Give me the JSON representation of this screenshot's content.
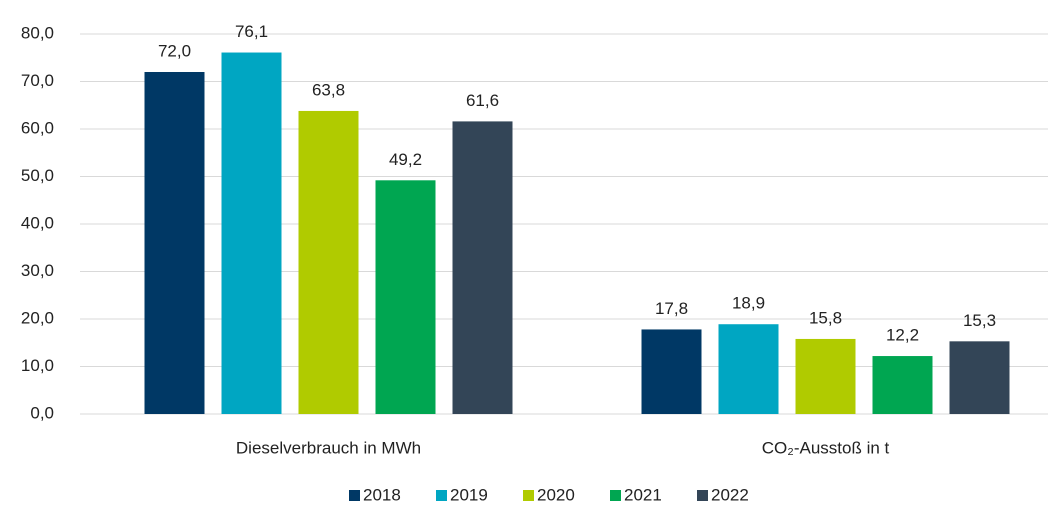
{
  "chart_data": {
    "type": "bar",
    "categories": [
      "Dieselverbrauch in MWh",
      "CO₂-Ausstoß in t"
    ],
    "series": [
      {
        "name": "2018",
        "color": "#003865",
        "values": [
          72.0,
          17.8
        ],
        "value_labels": [
          "72,0",
          "17,8"
        ]
      },
      {
        "name": "2019",
        "color": "#00a6c2",
        "values": [
          76.1,
          18.9
        ],
        "value_labels": [
          "76,1",
          "18,9"
        ]
      },
      {
        "name": "2020",
        "color": "#b0cb00",
        "values": [
          63.8,
          15.8
        ],
        "value_labels": [
          "63,8",
          "15,8"
        ]
      },
      {
        "name": "2021",
        "color": "#00a651",
        "values": [
          49.2,
          12.2
        ],
        "value_labels": [
          "49,2",
          "12,2"
        ]
      },
      {
        "name": "2022",
        "color": "#334557",
        "values": [
          61.6,
          15.3
        ],
        "value_labels": [
          "61,6",
          "15,3"
        ]
      }
    ],
    "ylim": [
      0,
      80
    ],
    "yticks": [
      {
        "value": 0,
        "label": "0,0"
      },
      {
        "value": 10,
        "label": "10,0"
      },
      {
        "value": 20,
        "label": "20,0"
      },
      {
        "value": 30,
        "label": "30,0"
      },
      {
        "value": 40,
        "label": "40,0"
      },
      {
        "value": 50,
        "label": "50,0"
      },
      {
        "value": 60,
        "label": "60,0"
      },
      {
        "value": 70,
        "label": "70,0"
      },
      {
        "value": 80,
        "label": "80,0"
      }
    ],
    "grid": true,
    "legend": "bottom"
  }
}
